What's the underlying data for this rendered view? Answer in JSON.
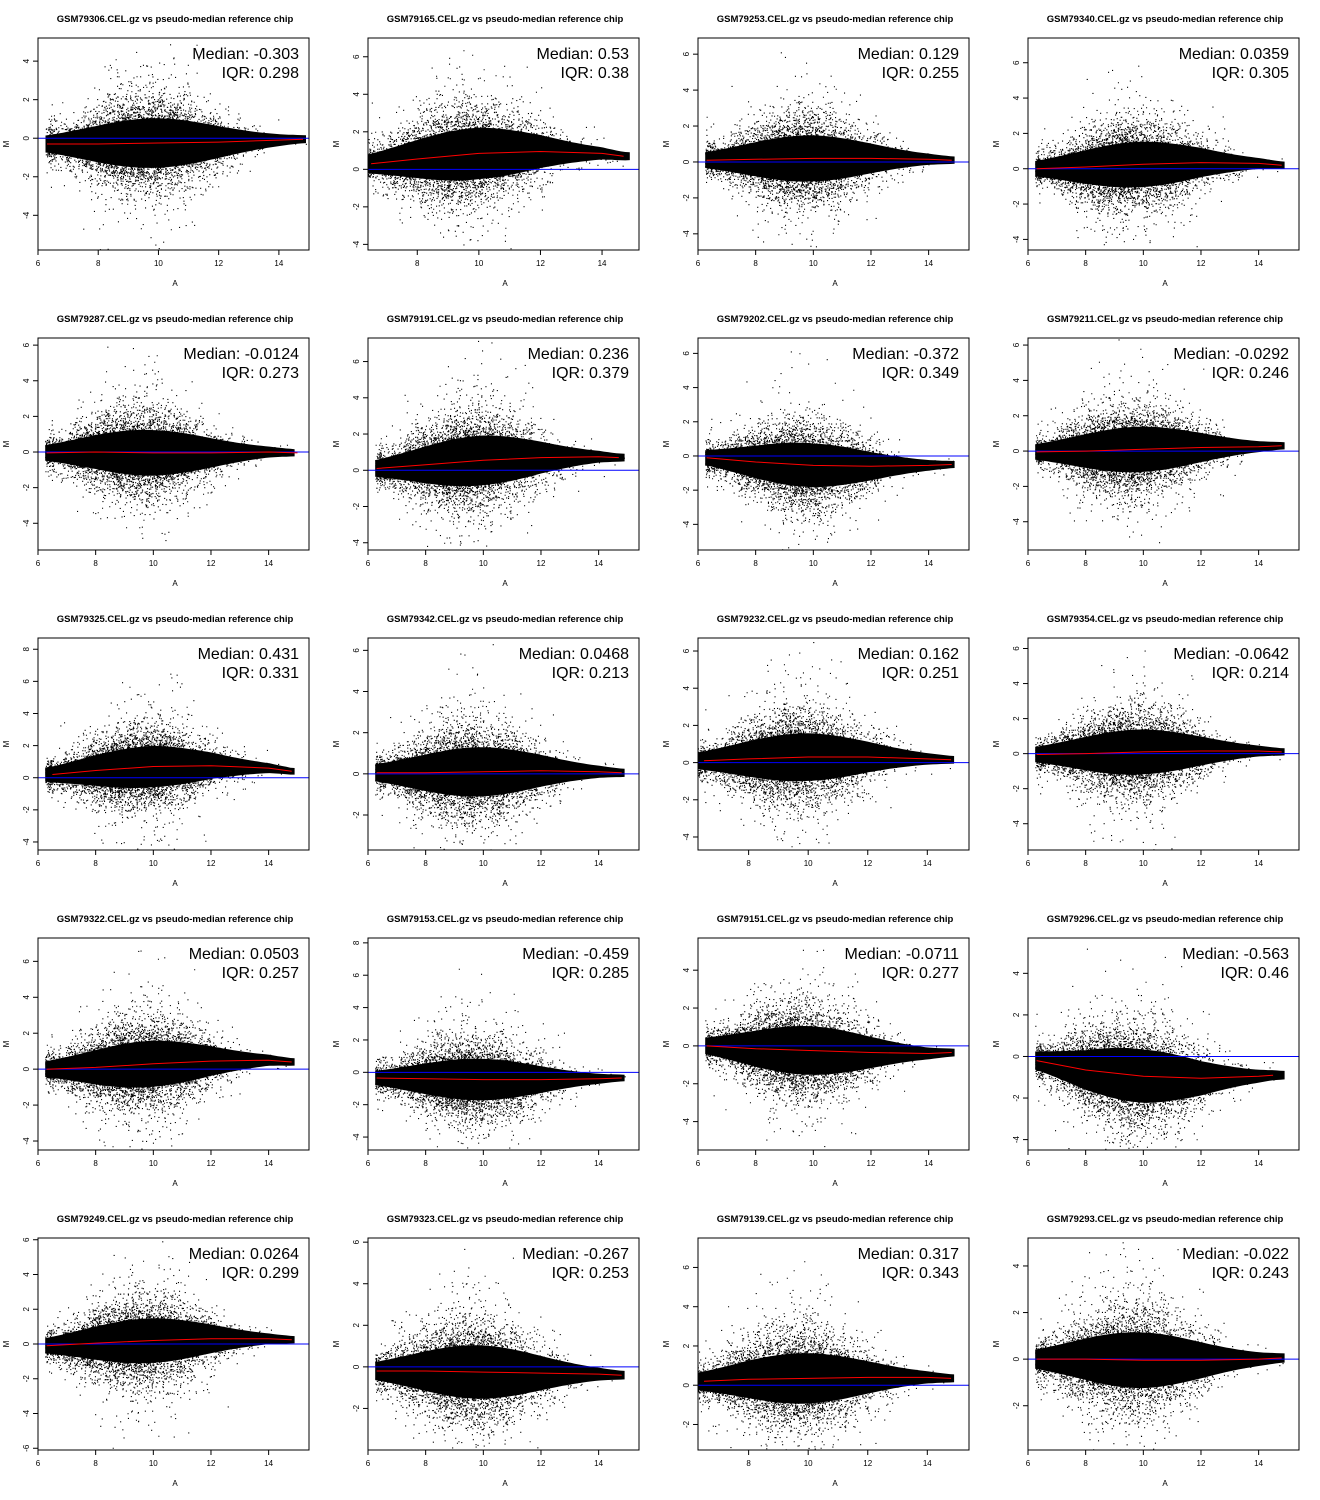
{
  "chart_data": [
    {
      "type": "scatter",
      "title": "GSM79306.CEL.gz vs pseudo-median reference chip",
      "xlabel": "A",
      "ylabel": "M",
      "xlim": [
        6,
        15
      ],
      "ylim": [
        -5.8,
        5.2
      ],
      "xticks": [
        6,
        8,
        10,
        12,
        14
      ],
      "yticks": [
        -4,
        -2,
        0,
        2,
        4
      ],
      "median_label": "Median: -0.303",
      "iqr_label": "IQR: 0.298",
      "median": -0.303,
      "iqr": 0.298,
      "spread": 1.3,
      "loess": {
        "x": [
          6.3,
          8,
          10,
          12,
          14,
          14.8
        ],
        "y": [
          -0.3,
          -0.3,
          -0.25,
          -0.2,
          -0.1,
          -0.05
        ]
      },
      "colors": {
        "points": "#000000",
        "reference": "#0000ff",
        "loess": "#ff0000"
      }
    },
    {
      "type": "scatter",
      "title": "GSM79165.CEL.gz vs pseudo-median reference chip",
      "xlabel": "A",
      "ylabel": "M",
      "xlim": [
        6.4,
        15.2
      ],
      "ylim": [
        -4.3,
        7
      ],
      "xticks": [
        8,
        10,
        12,
        14
      ],
      "yticks": [
        -4,
        -2,
        0,
        2,
        4,
        6
      ],
      "median_label": "Median: 0.53",
      "iqr_label": "IQR: 0.38",
      "median": 0.53,
      "iqr": 0.38,
      "spread": 1.4,
      "loess": {
        "x": [
          6.5,
          8,
          10,
          12,
          14,
          14.7
        ],
        "y": [
          0.3,
          0.55,
          0.85,
          0.95,
          0.85,
          0.7
        ]
      },
      "colors": {
        "points": "#000000",
        "reference": "#0000ff",
        "loess": "#ff0000"
      }
    },
    {
      "type": "scatter",
      "title": "GSM79253.CEL.gz vs pseudo-median reference chip",
      "xlabel": "A",
      "ylabel": "M",
      "xlim": [
        6,
        15.4
      ],
      "ylim": [
        -4.9,
        6.9
      ],
      "xticks": [
        6,
        8,
        10,
        12,
        14
      ],
      "yticks": [
        -4,
        -2,
        0,
        2,
        4,
        6
      ],
      "median_label": "Median: 0.129",
      "iqr_label": "IQR: 0.255",
      "median": 0.129,
      "iqr": 0.255,
      "spread": 1.3,
      "loess": {
        "x": [
          6.3,
          8,
          10,
          12,
          14,
          14.8
        ],
        "y": [
          0.1,
          0.15,
          0.2,
          0.2,
          0.15,
          0.1
        ]
      },
      "colors": {
        "points": "#000000",
        "reference": "#0000ff",
        "loess": "#ff0000"
      }
    },
    {
      "type": "scatter",
      "title": "GSM79340.CEL.gz vs pseudo-median reference chip",
      "xlabel": "A",
      "ylabel": "M",
      "xlim": [
        6,
        15.4
      ],
      "ylim": [
        -4.6,
        7.4
      ],
      "xticks": [
        6,
        8,
        10,
        12,
        14
      ],
      "yticks": [
        -4,
        -2,
        0,
        2,
        4,
        6
      ],
      "median_label": "Median: 0.0359",
      "iqr_label": "IQR: 0.305",
      "median": 0.0359,
      "iqr": 0.305,
      "spread": 1.3,
      "loess": {
        "x": [
          6.3,
          8,
          10,
          12,
          14,
          14.8
        ],
        "y": [
          0,
          0.1,
          0.25,
          0.35,
          0.3,
          0.2
        ]
      },
      "colors": {
        "points": "#000000",
        "reference": "#0000ff",
        "loess": "#ff0000"
      }
    },
    {
      "type": "scatter",
      "title": "GSM79287.CEL.gz vs pseudo-median reference chip",
      "xlabel": "A",
      "ylabel": "M",
      "xlim": [
        6,
        15.4
      ],
      "ylim": [
        -5.5,
        6.4
      ],
      "xticks": [
        6,
        8,
        10,
        12,
        14
      ],
      "yticks": [
        -4,
        -2,
        0,
        2,
        4,
        6
      ],
      "median_label": "Median: -0.0124",
      "iqr_label": "IQR: 0.273",
      "median": -0.0124,
      "iqr": 0.273,
      "spread": 1.3,
      "loess": {
        "x": [
          6.3,
          8,
          10,
          12,
          14,
          15
        ],
        "y": [
          -0.05,
          0,
          -0.05,
          -0.05,
          0,
          -0.05
        ]
      },
      "colors": {
        "points": "#000000",
        "reference": "#0000ff",
        "loess": "#ff0000"
      }
    },
    {
      "type": "scatter",
      "title": "GSM79191.CEL.gz vs pseudo-median reference chip",
      "xlabel": "A",
      "ylabel": "M",
      "xlim": [
        6,
        15.4
      ],
      "ylim": [
        -4.4,
        7.3
      ],
      "xticks": [
        6,
        8,
        10,
        12,
        14
      ],
      "yticks": [
        -4,
        -2,
        0,
        2,
        4,
        6
      ],
      "median_label": "Median: 0.236",
      "iqr_label": "IQR: 0.379",
      "median": 0.236,
      "iqr": 0.379,
      "spread": 1.4,
      "loess": {
        "x": [
          6.3,
          8,
          10,
          12,
          14,
          14.7
        ],
        "y": [
          0.1,
          0.3,
          0.55,
          0.7,
          0.75,
          0.7
        ]
      },
      "colors": {
        "points": "#000000",
        "reference": "#0000ff",
        "loess": "#ff0000"
      }
    },
    {
      "type": "scatter",
      "title": "GSM79202.CEL.gz vs pseudo-median reference chip",
      "xlabel": "A",
      "ylabel": "M",
      "xlim": [
        6,
        15.4
      ],
      "ylim": [
        -5.5,
        6.9
      ],
      "xticks": [
        6,
        8,
        10,
        12,
        14
      ],
      "yticks": [
        -4,
        -2,
        0,
        2,
        4,
        6
      ],
      "median_label": "Median: -0.372",
      "iqr_label": "IQR: 0.349",
      "median": -0.372,
      "iqr": 0.349,
      "spread": 1.3,
      "loess": {
        "x": [
          6.3,
          8,
          10,
          12,
          14,
          14.8
        ],
        "y": [
          -0.1,
          -0.35,
          -0.55,
          -0.6,
          -0.55,
          -0.5
        ]
      },
      "colors": {
        "points": "#000000",
        "reference": "#0000ff",
        "loess": "#ff0000"
      }
    },
    {
      "type": "scatter",
      "title": "GSM79211.CEL.gz vs pseudo-median reference chip",
      "xlabel": "A",
      "ylabel": "M",
      "xlim": [
        6,
        15.4
      ],
      "ylim": [
        -5.6,
        6.4
      ],
      "xticks": [
        6,
        8,
        10,
        12,
        14
      ],
      "yticks": [
        -4,
        -2,
        0,
        2,
        4,
        6
      ],
      "median_label": "Median: -0.0292",
      "iqr_label": "IQR: 0.246",
      "median": -0.0292,
      "iqr": 0.246,
      "spread": 1.3,
      "loess": {
        "x": [
          6.3,
          8,
          10,
          12,
          14,
          14.8
        ],
        "y": [
          -0.05,
          0,
          0.1,
          0.2,
          0.25,
          0.3
        ]
      },
      "colors": {
        "points": "#000000",
        "reference": "#0000ff",
        "loess": "#ff0000"
      }
    },
    {
      "type": "scatter",
      "title": "GSM79325.CEL.gz vs pseudo-median reference chip",
      "xlabel": "A",
      "ylabel": "M",
      "xlim": [
        6,
        15.4
      ],
      "ylim": [
        -4.5,
        8.7
      ],
      "xticks": [
        6,
        8,
        10,
        12,
        14
      ],
      "yticks": [
        -4,
        -2,
        0,
        2,
        4,
        6,
        8
      ],
      "median_label": "Median: 0.431",
      "iqr_label": "IQR: 0.331",
      "median": 0.431,
      "iqr": 0.331,
      "spread": 1.3,
      "loess": {
        "x": [
          6.5,
          8,
          10,
          12,
          14,
          14.8
        ],
        "y": [
          0.2,
          0.45,
          0.7,
          0.75,
          0.6,
          0.4
        ]
      },
      "colors": {
        "points": "#000000",
        "reference": "#0000ff",
        "loess": "#ff0000"
      }
    },
    {
      "type": "scatter",
      "title": "GSM79342.CEL.gz vs pseudo-median reference chip",
      "xlabel": "A",
      "ylabel": "M",
      "xlim": [
        6,
        15.4
      ],
      "ylim": [
        -3.7,
        6.6
      ],
      "xticks": [
        6,
        8,
        10,
        12,
        14
      ],
      "yticks": [
        -2,
        0,
        2,
        4,
        6
      ],
      "median_label": "Median: 0.0468",
      "iqr_label": "IQR: 0.213",
      "median": 0.0468,
      "iqr": 0.213,
      "spread": 1.2,
      "loess": {
        "x": [
          6.3,
          8,
          10,
          12,
          14,
          14.8
        ],
        "y": [
          0.05,
          0.05,
          0.1,
          0.15,
          0.1,
          0.05
        ]
      },
      "colors": {
        "points": "#000000",
        "reference": "#0000ff",
        "loess": "#ff0000"
      }
    },
    {
      "type": "scatter",
      "title": "GSM79232.CEL.gz vs pseudo-median reference chip",
      "xlabel": "A",
      "ylabel": "M",
      "xlim": [
        6.3,
        15.4
      ],
      "ylim": [
        -4.7,
        6.7
      ],
      "xticks": [
        8,
        10,
        12,
        14
      ],
      "yticks": [
        -4,
        -2,
        0,
        2,
        4,
        6
      ],
      "median_label": "Median: 0.162",
      "iqr_label": "IQR: 0.251",
      "median": 0.162,
      "iqr": 0.251,
      "spread": 1.3,
      "loess": {
        "x": [
          6.5,
          8,
          10,
          12,
          14,
          14.8
        ],
        "y": [
          0.1,
          0.2,
          0.3,
          0.3,
          0.2,
          0.15
        ]
      },
      "colors": {
        "points": "#000000",
        "reference": "#0000ff",
        "loess": "#ff0000"
      }
    },
    {
      "type": "scatter",
      "title": "GSM79354.CEL.gz vs pseudo-median reference chip",
      "xlabel": "A",
      "ylabel": "M",
      "xlim": [
        6,
        15.4
      ],
      "ylim": [
        -5.5,
        6.6
      ],
      "xticks": [
        6,
        8,
        10,
        12,
        14
      ],
      "yticks": [
        -4,
        -2,
        0,
        2,
        4,
        6
      ],
      "median_label": "Median: -0.0642",
      "iqr_label": "IQR: 0.214",
      "median": -0.0642,
      "iqr": 0.214,
      "spread": 1.3,
      "loess": {
        "x": [
          6.3,
          8,
          10,
          12,
          14,
          14.8
        ],
        "y": [
          -0.05,
          0,
          0.1,
          0.15,
          0.15,
          0.1
        ]
      },
      "colors": {
        "points": "#000000",
        "reference": "#0000ff",
        "loess": "#ff0000"
      }
    },
    {
      "type": "scatter",
      "title": "GSM79322.CEL.gz vs pseudo-median reference chip",
      "xlabel": "A",
      "ylabel": "M",
      "xlim": [
        6,
        15.4
      ],
      "ylim": [
        -4.5,
        7.3
      ],
      "xticks": [
        6,
        8,
        10,
        12,
        14
      ],
      "yticks": [
        -4,
        -2,
        0,
        2,
        4,
        6
      ],
      "median_label": "Median: 0.0503",
      "iqr_label": "IQR: 0.257",
      "median": 0.0503,
      "iqr": 0.257,
      "spread": 1.3,
      "loess": {
        "x": [
          6.3,
          8,
          10,
          12,
          14,
          14.8
        ],
        "y": [
          0,
          0.1,
          0.3,
          0.45,
          0.5,
          0.4
        ]
      },
      "colors": {
        "points": "#000000",
        "reference": "#0000ff",
        "loess": "#ff0000"
      }
    },
    {
      "type": "scatter",
      "title": "GSM79153.CEL.gz vs pseudo-median reference chip",
      "xlabel": "A",
      "ylabel": "M",
      "xlim": [
        6,
        15.4
      ],
      "ylim": [
        -4.8,
        8.3
      ],
      "xticks": [
        6,
        8,
        10,
        12,
        14
      ],
      "yticks": [
        -4,
        -2,
        0,
        2,
        4,
        6,
        8
      ],
      "median_label": "Median: -0.459",
      "iqr_label": "IQR: 0.285",
      "median": -0.459,
      "iqr": 0.285,
      "spread": 1.3,
      "loess": {
        "x": [
          6.3,
          8,
          10,
          12,
          14,
          14.8
        ],
        "y": [
          -0.35,
          -0.4,
          -0.45,
          -0.45,
          -0.4,
          -0.35
        ]
      },
      "colors": {
        "points": "#000000",
        "reference": "#0000ff",
        "loess": "#ff0000"
      }
    },
    {
      "type": "scatter",
      "title": "GSM79151.CEL.gz vs pseudo-median reference chip",
      "xlabel": "A",
      "ylabel": "M",
      "xlim": [
        6,
        15.4
      ],
      "ylim": [
        -5.5,
        5.7
      ],
      "xticks": [
        6,
        8,
        10,
        12,
        14
      ],
      "yticks": [
        -4,
        -2,
        0,
        2,
        4
      ],
      "median_label": "Median: -0.0711",
      "iqr_label": "IQR: 0.277",
      "median": -0.0711,
      "iqr": 0.277,
      "spread": 1.3,
      "loess": {
        "x": [
          6.3,
          8,
          10,
          12,
          14,
          14.8
        ],
        "y": [
          0,
          -0.15,
          -0.25,
          -0.35,
          -0.4,
          -0.35
        ]
      },
      "colors": {
        "points": "#000000",
        "reference": "#0000ff",
        "loess": "#ff0000"
      }
    },
    {
      "type": "scatter",
      "title": "GSM79296.CEL.gz vs pseudo-median reference chip",
      "xlabel": "A",
      "ylabel": "M",
      "xlim": [
        6,
        15.4
      ],
      "ylim": [
        -4.5,
        5.7
      ],
      "xticks": [
        6,
        8,
        10,
        12,
        14
      ],
      "yticks": [
        -4,
        -2,
        0,
        2,
        4
      ],
      "median_label": "Median: -0.563",
      "iqr_label": "IQR: 0.46",
      "median": -0.563,
      "iqr": 0.46,
      "spread": 1.3,
      "loess": {
        "x": [
          6.3,
          8,
          10,
          12,
          14,
          14.5
        ],
        "y": [
          -0.2,
          -0.65,
          -0.95,
          -1.05,
          -0.95,
          -0.9
        ]
      },
      "colors": {
        "points": "#000000",
        "reference": "#0000ff",
        "loess": "#ff0000"
      }
    },
    {
      "type": "scatter",
      "title": "GSM79249.CEL.gz vs pseudo-median reference chip",
      "xlabel": "A",
      "ylabel": "M",
      "xlim": [
        6,
        15.4
      ],
      "ylim": [
        -6.1,
        6.1
      ],
      "xticks": [
        6,
        8,
        10,
        12,
        14
      ],
      "yticks": [
        -6,
        -4,
        -2,
        0,
        2,
        4,
        6
      ],
      "median_label": "Median: 0.0264",
      "iqr_label": "IQR: 0.299",
      "median": 0.0264,
      "iqr": 0.299,
      "spread": 1.3,
      "loess": {
        "x": [
          6.3,
          8,
          10,
          12,
          14,
          14.8
        ],
        "y": [
          -0.1,
          0.05,
          0.2,
          0.3,
          0.3,
          0.25
        ]
      },
      "colors": {
        "points": "#000000",
        "reference": "#0000ff",
        "loess": "#ff0000"
      }
    },
    {
      "type": "scatter",
      "title": "GSM79323.CEL.gz vs pseudo-median reference chip",
      "xlabel": "A",
      "ylabel": "M",
      "xlim": [
        6,
        15.4
      ],
      "ylim": [
        -4,
        6.2
      ],
      "xticks": [
        6,
        8,
        10,
        12,
        14
      ],
      "yticks": [
        -2,
        0,
        2,
        4,
        6
      ],
      "median_label": "Median: -0.267",
      "iqr_label": "IQR: 0.253",
      "median": -0.267,
      "iqr": 0.253,
      "spread": 1.3,
      "loess": {
        "x": [
          6.3,
          8,
          10,
          12,
          14,
          14.8
        ],
        "y": [
          -0.2,
          -0.2,
          -0.25,
          -0.3,
          -0.35,
          -0.4
        ]
      },
      "colors": {
        "points": "#000000",
        "reference": "#0000ff",
        "loess": "#ff0000"
      }
    },
    {
      "type": "scatter",
      "title": "GSM79139.CEL.gz vs pseudo-median reference chip",
      "xlabel": "A",
      "ylabel": "M",
      "xlim": [
        6.3,
        15.4
      ],
      "ylim": [
        -3.3,
        7.5
      ],
      "xticks": [
        8,
        10,
        12,
        14
      ],
      "yticks": [
        -2,
        0,
        2,
        4,
        6
      ],
      "median_label": "Median: 0.317",
      "iqr_label": "IQR: 0.343",
      "median": 0.317,
      "iqr": 0.343,
      "spread": 1.3,
      "loess": {
        "x": [
          6.5,
          8,
          10,
          12,
          14,
          14.8
        ],
        "y": [
          0.2,
          0.3,
          0.35,
          0.4,
          0.4,
          0.35
        ]
      },
      "colors": {
        "points": "#000000",
        "reference": "#0000ff",
        "loess": "#ff0000"
      }
    },
    {
      "type": "scatter",
      "title": "GSM79293.CEL.gz vs pseudo-median reference chip",
      "xlabel": "A",
      "ylabel": "M",
      "xlim": [
        6,
        15.4
      ],
      "ylim": [
        -3.9,
        5.2
      ],
      "xticks": [
        6,
        8,
        10,
        12,
        14
      ],
      "yticks": [
        -2,
        0,
        2,
        4
      ],
      "median_label": "Median: -0.022",
      "iqr_label": "IQR: 0.243",
      "median": -0.022,
      "iqr": 0.243,
      "spread": 1.2,
      "loess": {
        "x": [
          6.3,
          8,
          10,
          12,
          14,
          14.8
        ],
        "y": [
          0,
          0,
          -0.05,
          -0.05,
          0,
          0.05
        ]
      },
      "colors": {
        "points": "#000000",
        "reference": "#0000ff",
        "loess": "#ff0000"
      }
    }
  ]
}
